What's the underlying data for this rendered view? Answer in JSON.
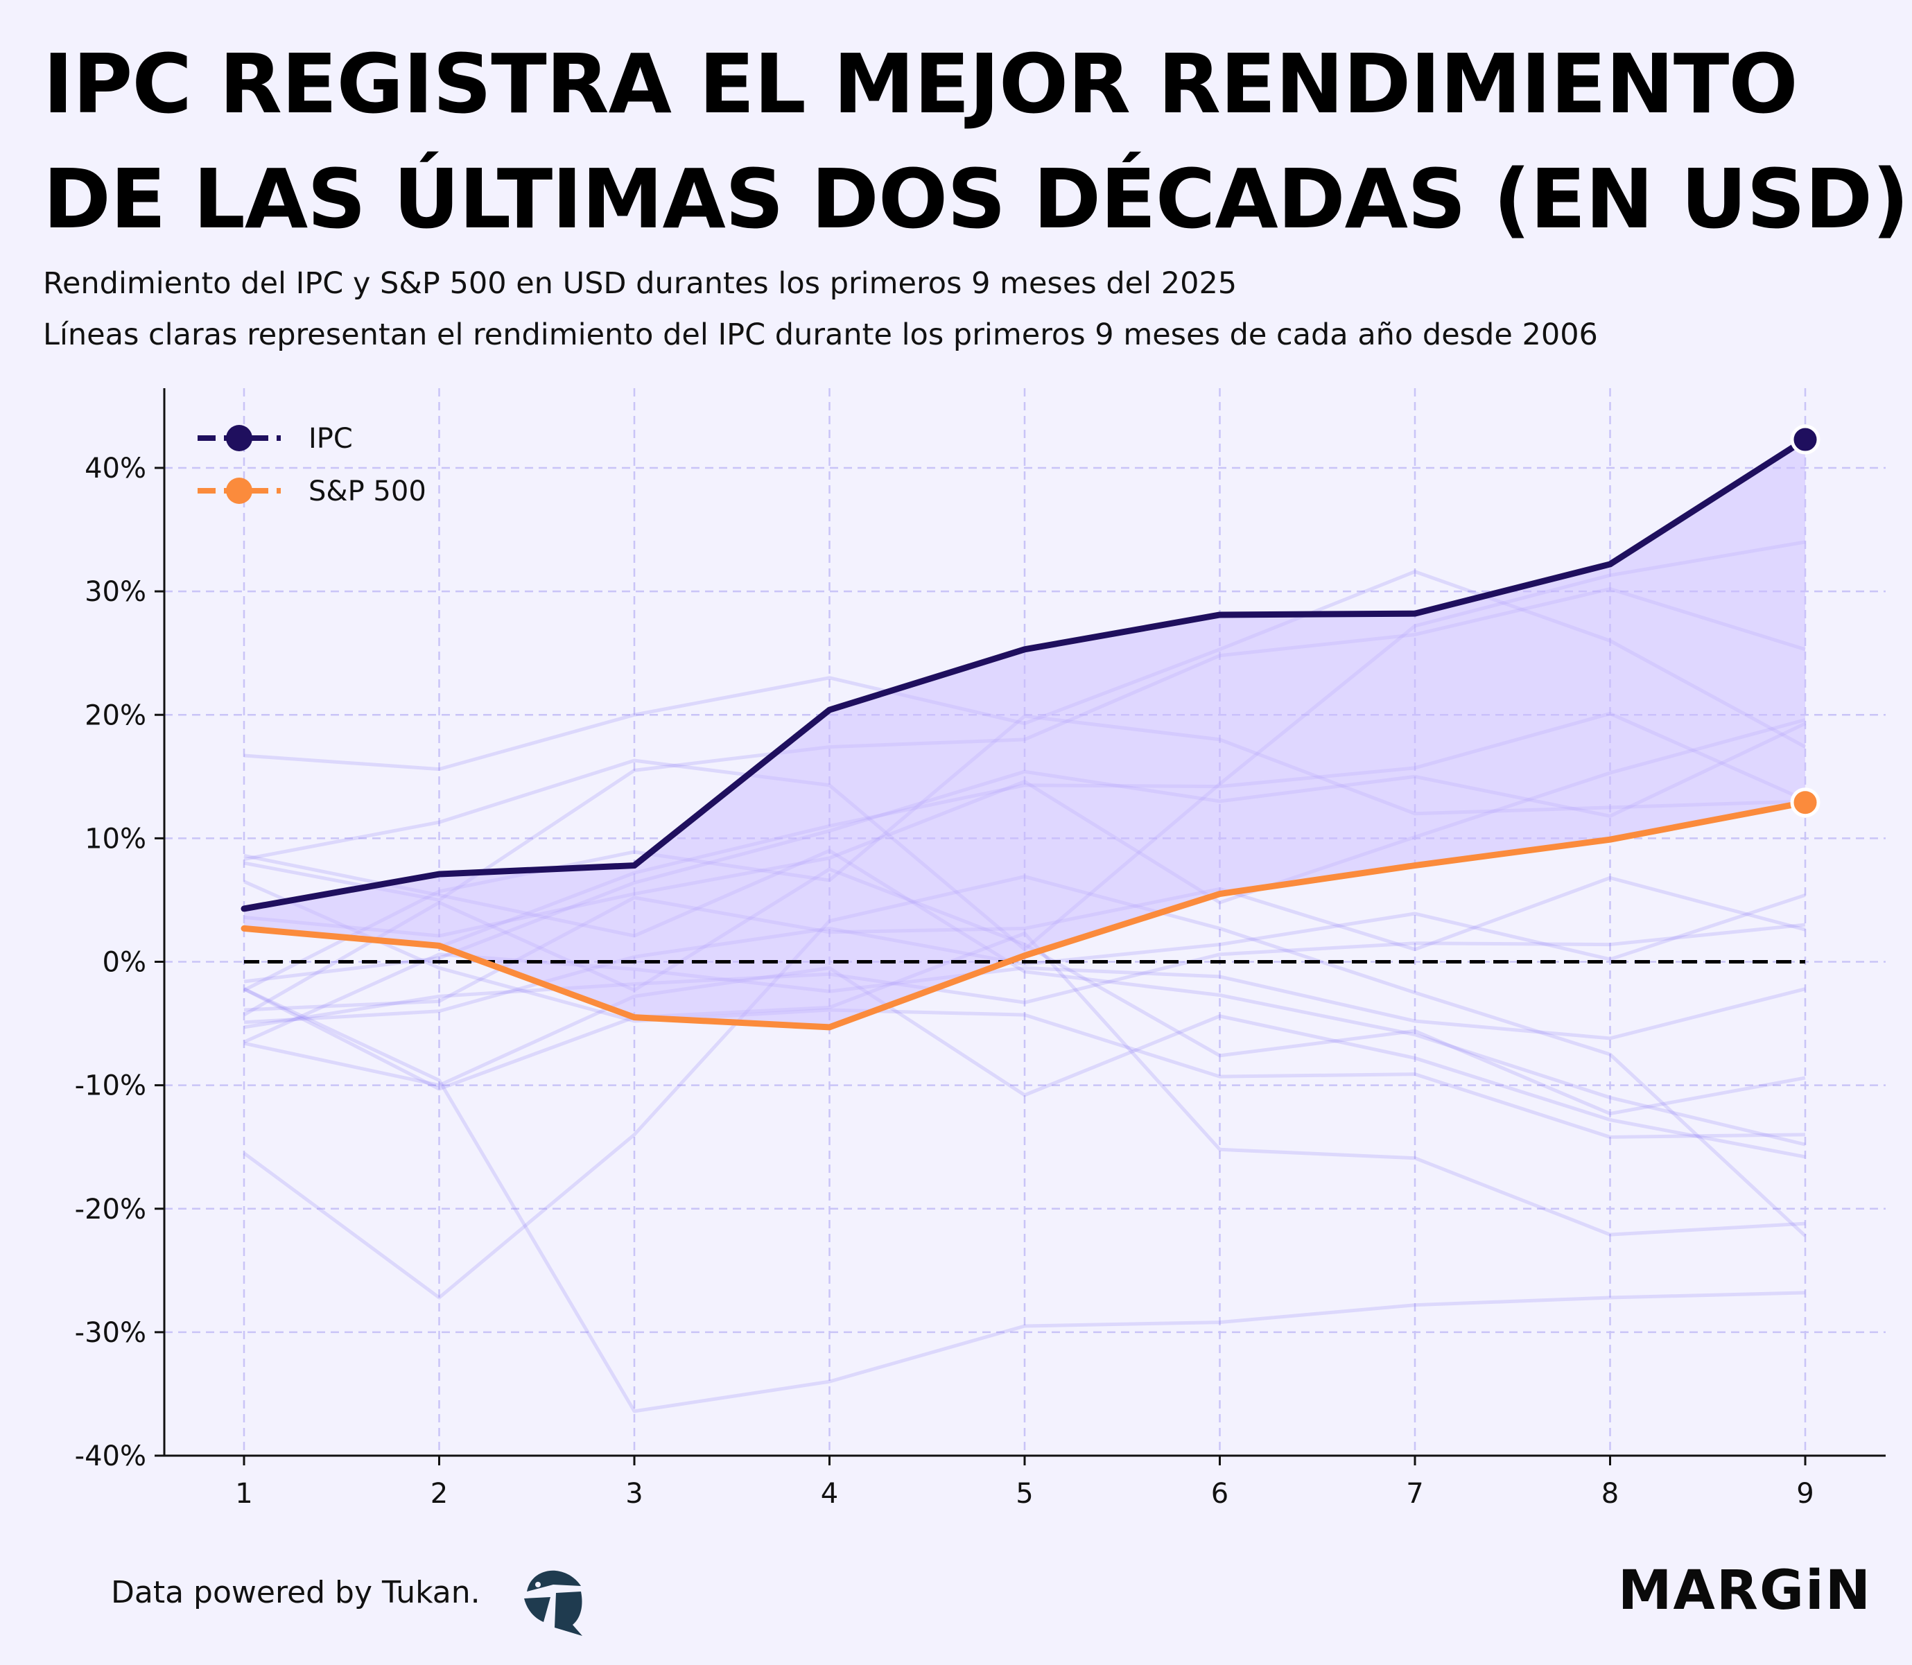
{
  "header": {
    "title_line1": "IPC REGISTRA EL MEJOR RENDIMIENTO",
    "title_line2": "DE LAS ÚLTIMAS DOS DÉCADAS (EN USD)",
    "subtitle_line1": "Rendimiento del IPC y S&P 500 en USD durantes los primeros 9 meses del 2025",
    "subtitle_line2": "Líneas claras representan el rendimiento del IPC durante los primeros 9 meses de cada año desde 2006"
  },
  "footer": {
    "credit": "Data powered by Tukan.",
    "brand": "MARGiN",
    "logo_icon": "tukan-bird-icon"
  },
  "colors": {
    "background": "#f3f2fe",
    "ipc": "#1f0f5e",
    "sp500": "#fb8b3c",
    "fill": "#cbbcff",
    "history": "#8f7cf5",
    "grid": "#c9c4f7",
    "zero_line": "#000000"
  },
  "chart_data": {
    "type": "line",
    "x": [
      1,
      2,
      3,
      4,
      5,
      6,
      7,
      8,
      9
    ],
    "xlabel": "",
    "ylabel": "",
    "ylim": [
      -40,
      45
    ],
    "yticks": [
      40,
      30,
      20,
      10,
      0,
      -10,
      -20,
      -30,
      -40
    ],
    "ytick_labels": [
      "40%",
      "30%",
      "20%",
      "10%",
      "0%",
      "-10%",
      "-20%",
      "-30%",
      "-40%"
    ],
    "xtick_labels": [
      "1",
      "2",
      "3",
      "4",
      "5",
      "6",
      "7",
      "8",
      "9"
    ],
    "grid": true,
    "legend_position": "top-left",
    "zero_reference": "dashed line at 0%",
    "fill_between": "IPC and S&P 500",
    "series": [
      {
        "name": "IPC",
        "values": [
          4.3,
          7.1,
          7.8,
          20.4,
          25.3,
          28.1,
          28.2,
          32.2,
          42.3
        ]
      },
      {
        "name": "S&P 500",
        "values": [
          2.7,
          1.3,
          -4.5,
          -5.3,
          0.5,
          5.5,
          7.8,
          9.9,
          12.9
        ]
      }
    ],
    "history_series": [
      [
        16.7,
        15.6,
        20.0,
        23.0,
        19.3,
        25.3,
        31.6,
        26.0,
        17.4
      ],
      [
        8.3,
        11.3,
        16.3,
        14.3,
        1.0,
        14.4,
        27.2,
        31.3,
        34.0
      ],
      [
        8.0,
        5.0,
        15.5,
        17.4,
        18.0,
        24.8,
        26.5,
        30.2,
        25.3
      ],
      [
        2.6,
        1.2,
        7.2,
        11.0,
        14.3,
        14.2,
        15.7,
        20.1,
        13.1
      ],
      [
        -1.6,
        0.3,
        6.4,
        10.6,
        15.4,
        13.0,
        15.0,
        11.8,
        19.3
      ],
      [
        -2.3,
        5.7,
        8.9,
        6.6,
        19.9,
        18.0,
        12.0,
        12.5,
        13.0
      ],
      [
        3.6,
        2.1,
        5.5,
        8.4,
        14.6,
        4.8,
        10.1,
        15.3,
        19.6
      ],
      [
        -3.9,
        -3.2,
        5.2,
        2.4,
        2.7,
        5.9,
        1.0,
        6.8,
        2.6
      ],
      [
        -4.9,
        -4.0,
        0.4,
        2.7,
        -0.2,
        1.4,
        3.9,
        0.2,
        5.4
      ],
      [
        -5.3,
        -2.8,
        -1.8,
        -1.0,
        -3.3,
        0.6,
        1.5,
        1.4,
        3.0
      ],
      [
        -6.5,
        0.6,
        -0.6,
        -2.4,
        -0.5,
        -1.2,
        -4.8,
        -6.2,
        -2.2
      ],
      [
        8.6,
        5.4,
        2.1,
        9.0,
        -0.8,
        -2.7,
        -5.9,
        -11.0,
        -14.8
      ],
      [
        -4.3,
        4.8,
        -2.3,
        7.5,
        1.4,
        -7.6,
        -5.6,
        -12.3,
        -9.4
      ],
      [
        6.5,
        -0.5,
        -4.8,
        -3.9,
        -4.3,
        -9.3,
        -9.1,
        -14.2,
        -14.0
      ],
      [
        -6.6,
        -10.0,
        -2.8,
        -0.5,
        -10.8,
        -4.4,
        -7.8,
        -12.8,
        -15.8
      ],
      [
        -2.2,
        -10.3,
        -4.5,
        -3.7,
        2.3,
        -15.2,
        -15.9,
        -22.1,
        -21.2
      ],
      [
        -15.5,
        -27.2,
        -14.0,
        3.3,
        6.9,
        2.7,
        -2.5,
        -7.5,
        -22.2
      ],
      [
        -2.2,
        -9.6,
        -36.4,
        -34.0,
        -29.5,
        -29.2,
        -27.8,
        -27.2,
        -26.8
      ]
    ]
  }
}
